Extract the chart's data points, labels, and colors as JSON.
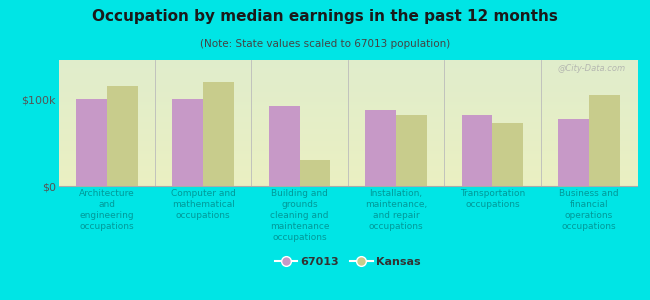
{
  "title": "Occupation by median earnings in the past 12 months",
  "subtitle": "(Note: State values scaled to 67013 population)",
  "categories": [
    "Architecture\nand\nengineering\noccupations",
    "Computer and\nmathematical\noccupations",
    "Building and\ngrounds\ncleaning and\nmaintenance\noccupations",
    "Installation,\nmaintenance,\nand repair\noccupations",
    "Transportation\noccupations",
    "Business and\nfinancial\noperations\noccupations"
  ],
  "values_67013": [
    100000,
    100000,
    92000,
    88000,
    82000,
    77000
  ],
  "values_kansas": [
    115000,
    120000,
    30000,
    82000,
    72000,
    105000
  ],
  "color_67013": "#c799c7",
  "color_kansas": "#c8cc8c",
  "background_outer": "#00e5e5",
  "background_inner": "#e8f0dc",
  "bar_width": 0.32,
  "ylim": [
    0,
    145000
  ],
  "yticks": [
    0,
    100000
  ],
  "ytick_labels": [
    "$0",
    "$100k"
  ],
  "legend_label_1": "67013",
  "legend_label_2": "Kansas",
  "watermark": "@City-Data.com",
  "title_fontsize": 11,
  "subtitle_fontsize": 7.5,
  "tick_label_fontsize": 6.5,
  "legend_fontsize": 8,
  "xlabel_color": "#009999",
  "ytick_color": "#555555"
}
